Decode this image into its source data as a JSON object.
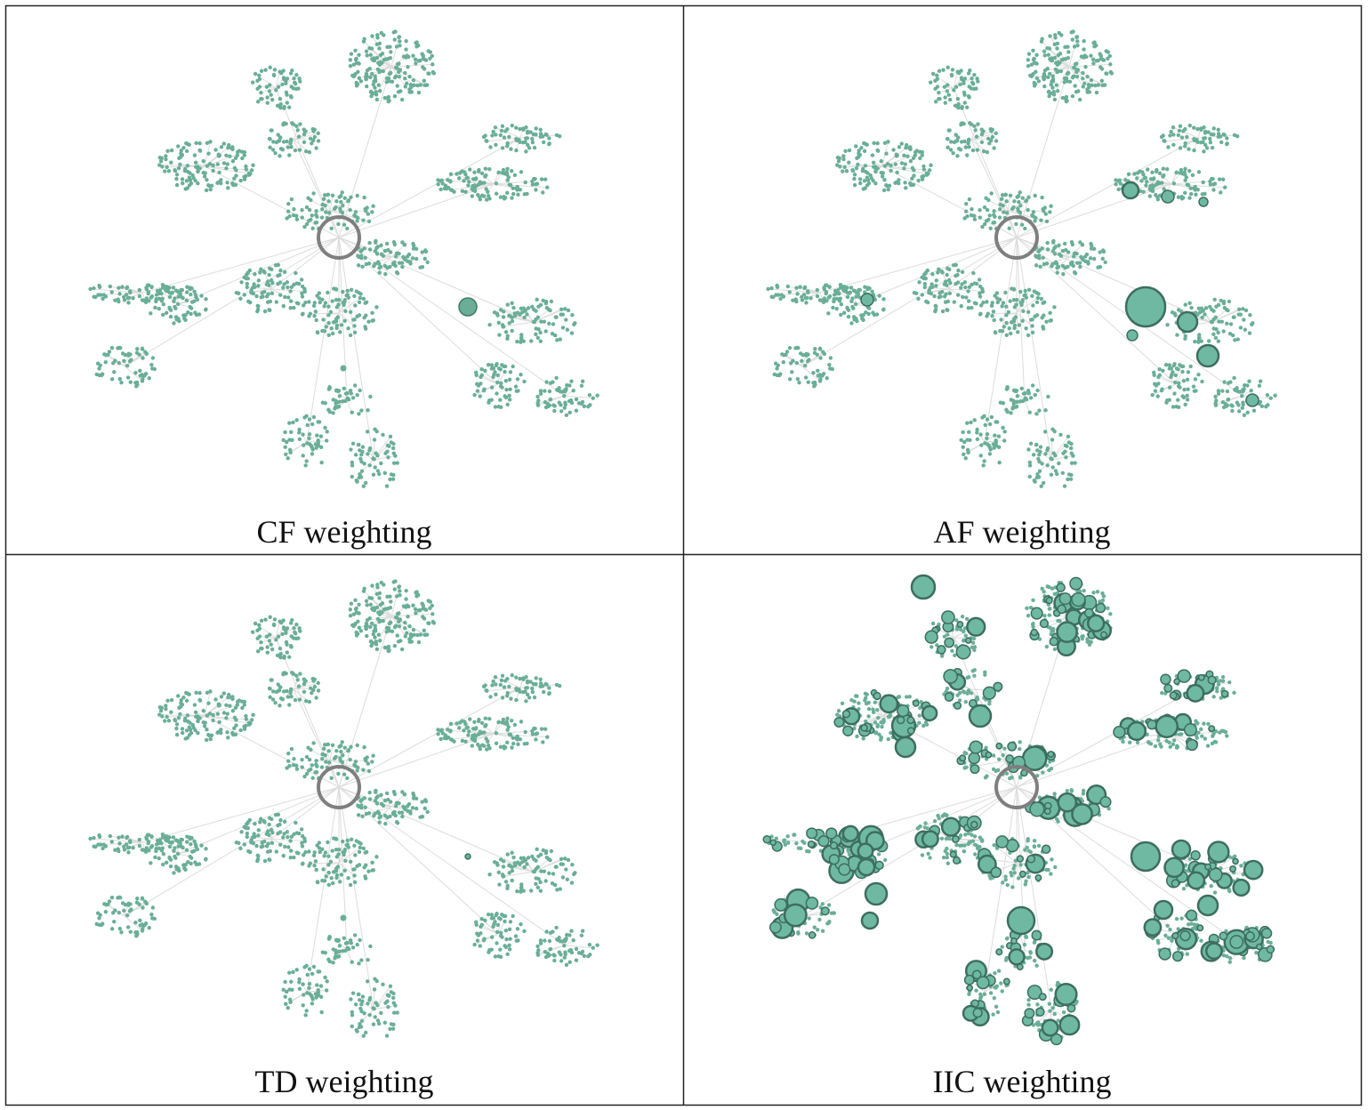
{
  "panels": [
    {
      "caption": "CF weighting"
    },
    {
      "caption": "AF weighting"
    },
    {
      "caption": "TD weighting"
    },
    {
      "caption": "IIC weighting"
    }
  ]
}
